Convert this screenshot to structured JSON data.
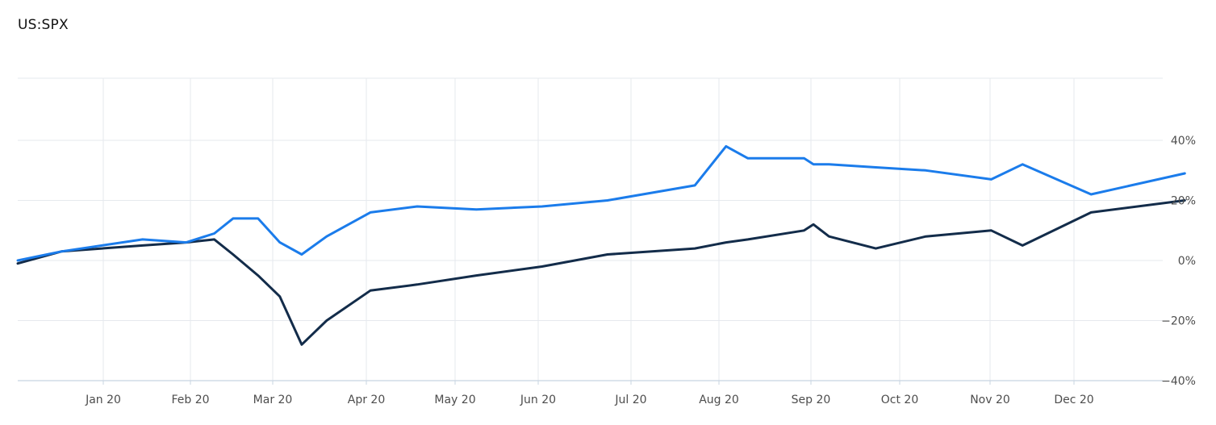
{
  "title": "US:SPX",
  "chart_data": {
    "type": "line",
    "title": "US:SPX",
    "xlabel": "",
    "ylabel": "",
    "x_tick_labels": [
      "Jan 20",
      "Feb 20",
      "Mar 20",
      "Apr 20",
      "May 20",
      "Jun 20",
      "Jul 20",
      "Aug 20",
      "Sep 20",
      "Oct 20",
      "Nov 20",
      "Dec 20"
    ],
    "y_tick_labels": [
      "40%",
      "20%",
      "0%",
      "−20%",
      "−40%"
    ],
    "ylim": [
      -40,
      40
    ],
    "y_unit": "%",
    "grid": true,
    "axis_side": "right",
    "x_dates": [
      "2019-12-23",
      "2020-01-06",
      "2020-02-01",
      "2020-02-15",
      "2020-02-24",
      "2020-03-01",
      "2020-03-09",
      "2020-03-16",
      "2020-03-23",
      "2020-03-31",
      "2020-04-14",
      "2020-04-29",
      "2020-05-18",
      "2020-06-08",
      "2020-06-29",
      "2020-07-27",
      "2020-08-06",
      "2020-08-13",
      "2020-08-31",
      "2020-09-03",
      "2020-09-08",
      "2020-09-23",
      "2020-10-09",
      "2020-10-30",
      "2020-11-09",
      "2020-12-01",
      "2020-12-31"
    ],
    "series": [
      {
        "color": "#132c4a",
        "values": [
          -1,
          3,
          5,
          6,
          7,
          2,
          -5,
          -12,
          -28,
          -20,
          -10,
          -8,
          -5,
          -2,
          2,
          4,
          6,
          7,
          10,
          12,
          8,
          4,
          8,
          10,
          5,
          16,
          20
        ]
      },
      {
        "color": "#1b7ceb",
        "values": [
          0,
          3,
          7,
          6,
          9,
          14,
          14,
          6,
          2,
          8,
          16,
          18,
          17,
          18,
          20,
          25,
          38,
          34,
          34,
          32,
          32,
          31,
          30,
          27,
          32,
          22,
          29
        ]
      }
    ]
  }
}
